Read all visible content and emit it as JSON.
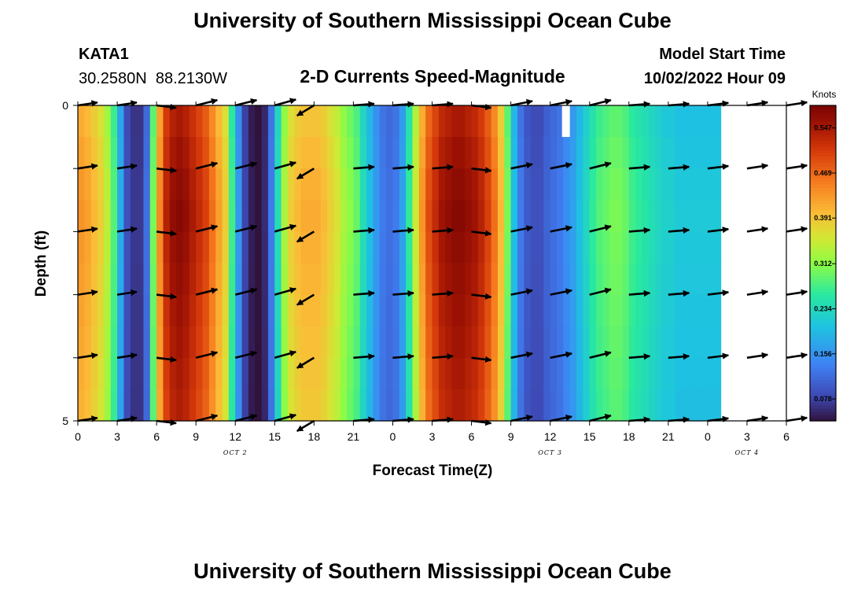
{
  "chart_data": {
    "type": "heatmap",
    "title": "University of Southern Mississippi Ocean Cube",
    "subtitle": "2-D Currents Speed-Magnitude",
    "station": "KATA1",
    "coordinates": "30.2580N  88.2130W",
    "start_label": "Model Start Time",
    "start_value": "10/02/2022 Hour 09",
    "xlabel": "Forecast Time(Z)",
    "ylabel": "Depth (ft)",
    "x_range": [
      0,
      54
    ],
    "y_range": [
      0,
      5
    ],
    "x_tick_values": [
      0,
      3,
      6,
      9,
      12,
      15,
      18,
      21,
      24,
      27,
      30,
      33,
      36,
      39,
      42,
      45,
      48,
      51,
      54
    ],
    "x_tick_labels": [
      "0",
      "3",
      "6",
      "9",
      "12",
      "15",
      "18",
      "21",
      "0",
      "3",
      "6",
      "9",
      "12",
      "15",
      "18",
      "21",
      "0",
      "3",
      "6"
    ],
    "y_tick_values": [
      0,
      5
    ],
    "y_tick_labels": [
      "0",
      "5"
    ],
    "date_labels": [
      {
        "text": "OCT 2",
        "x": 12
      },
      {
        "text": "OCT 3",
        "x": 36
      },
      {
        "text": "OCT 4",
        "x": 51
      }
    ],
    "colorbar": {
      "unit": "Knots",
      "min": 0.04,
      "max": 0.586,
      "tick_values": [
        0.547,
        0.469,
        0.391,
        0.312,
        0.234,
        0.156,
        0.078
      ],
      "tick_labels": [
        "0.547",
        "0.469",
        "0.391",
        "0.312",
        "0.234",
        "0.156",
        "0.078"
      ]
    },
    "speed_by_hour": [
      0.43,
      0.42,
      0.4,
      0.38,
      0.34,
      0.28,
      0.18,
      0.09,
      0.07,
      0.07,
      0.12,
      0.3,
      0.44,
      0.53,
      0.56,
      0.57,
      0.56,
      0.54,
      0.52,
      0.5,
      0.46,
      0.42,
      0.38,
      0.27,
      0.16,
      0.08,
      0.05,
      0.04,
      0.06,
      0.13,
      0.24,
      0.33,
      0.38,
      0.4,
      0.41,
      0.41,
      0.41,
      0.4,
      0.38,
      0.36,
      0.33,
      0.31,
      0.29,
      0.24,
      0.2,
      0.16,
      0.13,
      0.12,
      0.13,
      0.17,
      0.26,
      0.35,
      0.43,
      0.49,
      0.52,
      0.55,
      0.56,
      0.57,
      0.57,
      0.56,
      0.55,
      0.53,
      0.5,
      0.46,
      0.4,
      0.3,
      0.2,
      0.13,
      0.1,
      0.09,
      0.09,
      0.11,
      0.12,
      0.13,
      0.15,
      0.17,
      0.2,
      0.23,
      0.26,
      0.28,
      0.29,
      0.3,
      0.3,
      0.29,
      0.27,
      0.26,
      0.25,
      0.24,
      0.23,
      0.22,
      0.22,
      0.21,
      0.21,
      0.21,
      0.21,
      0.21,
      0.21,
      0.21
    ],
    "speed_hour_step": 0.5,
    "depth_levels": [
      0,
      0.5,
      1,
      1.5,
      2,
      2.5,
      3,
      3.5,
      4,
      4.5,
      5
    ],
    "depth_factor": [
      0.96,
      0.98,
      1.0,
      1.01,
      1.0,
      0.99,
      0.98,
      0.97,
      0.96,
      0.95,
      0.94
    ],
    "missing_cells": [
      {
        "x_from": 36.9,
        "x_to": 37.5,
        "y_from": 0,
        "y_to": 0.5
      }
    ],
    "vectors": {
      "x": [
        0,
        3,
        6,
        9,
        12,
        15,
        18,
        21,
        24,
        27,
        30,
        33,
        36,
        39,
        42,
        45,
        48,
        51,
        54
      ],
      "depths": [
        0,
        1,
        2,
        3,
        4,
        5
      ],
      "u": [
        1,
        1,
        1,
        1,
        1,
        1,
        -1,
        1,
        1,
        1,
        1,
        1,
        1,
        1,
        1,
        1,
        1,
        1,
        1
      ],
      "v": [
        0.15,
        0.15,
        -0.12,
        0.25,
        0.25,
        0.28,
        -0.6,
        0.08,
        0.08,
        0.08,
        -0.12,
        0.2,
        0.2,
        0.25,
        0.08,
        0.08,
        0.12,
        0.15,
        0.15
      ],
      "mag": [
        0.9,
        0.9,
        0.9,
        1.0,
        1.0,
        1.0,
        0.9,
        0.95,
        0.95,
        0.95,
        0.9,
        1.0,
        1.0,
        1.0,
        0.95,
        0.95,
        0.95,
        0.95,
        0.95
      ]
    }
  },
  "footer_title": "University of Southern Mississippi Ocean Cube"
}
